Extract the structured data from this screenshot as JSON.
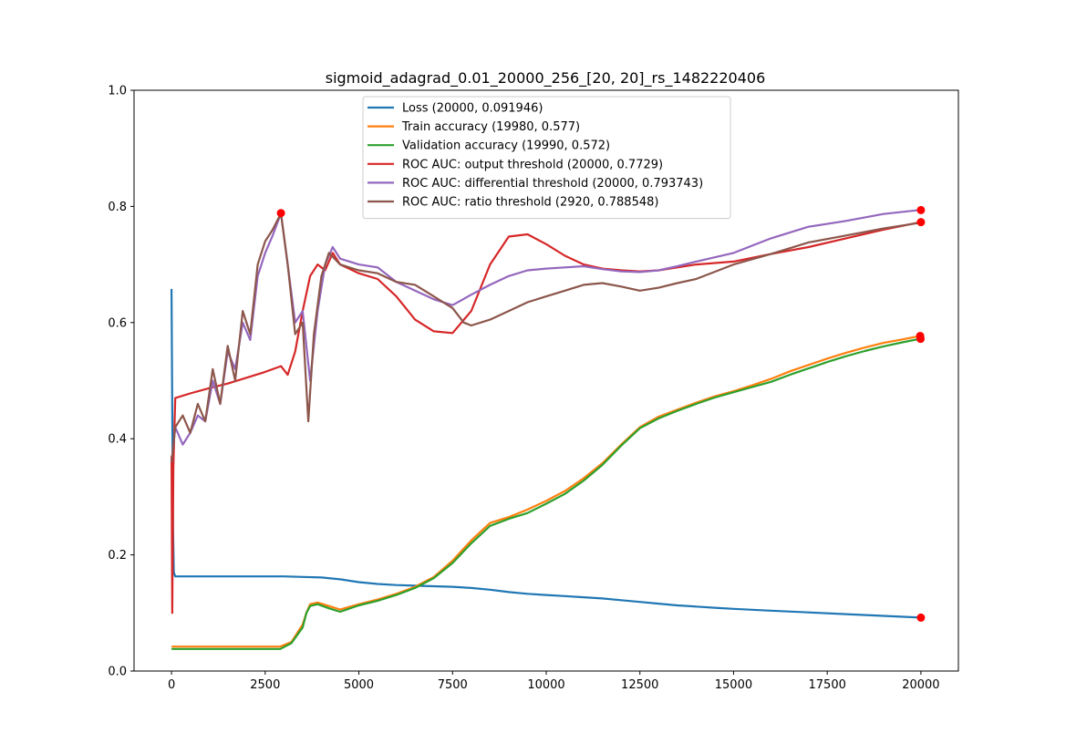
{
  "chart_data": {
    "type": "line",
    "title": "sigmoid_adagrad_0.01_20000_256_[20, 20]_rs_1482220406",
    "xlabel": "",
    "ylabel": "",
    "xlim": [
      -1000,
      21000
    ],
    "ylim": [
      0.0,
      1.0
    ],
    "xticks": [
      0,
      2500,
      5000,
      7500,
      10000,
      12500,
      15000,
      17500,
      20000
    ],
    "yticks": [
      0.0,
      0.2,
      0.4,
      0.6,
      0.8,
      1.0
    ],
    "xtick_labels": [
      "0",
      "2500",
      "5000",
      "7500",
      "10000",
      "12500",
      "15000",
      "17500",
      "20000"
    ],
    "ytick_labels": [
      "0.0",
      "0.2",
      "0.4",
      "0.6",
      "0.8",
      "1.0"
    ],
    "grid": false,
    "legend_position": "upper-center",
    "series": [
      {
        "name": "Loss (20000, 0.091946)",
        "color": "#1f77b4",
        "points": [
          [
            0,
            0.658
          ],
          [
            20,
            0.45
          ],
          [
            40,
            0.25
          ],
          [
            60,
            0.17
          ],
          [
            100,
            0.163
          ],
          [
            500,
            0.163
          ],
          [
            1000,
            0.163
          ],
          [
            2000,
            0.163
          ],
          [
            3000,
            0.163
          ],
          [
            3500,
            0.162
          ],
          [
            4000,
            0.161
          ],
          [
            4500,
            0.158
          ],
          [
            5000,
            0.153
          ],
          [
            5500,
            0.15
          ],
          [
            6000,
            0.148
          ],
          [
            6500,
            0.147
          ],
          [
            7000,
            0.146
          ],
          [
            7500,
            0.145
          ],
          [
            8000,
            0.143
          ],
          [
            8500,
            0.14
          ],
          [
            9000,
            0.136
          ],
          [
            9500,
            0.133
          ],
          [
            10000,
            0.131
          ],
          [
            10500,
            0.129
          ],
          [
            11000,
            0.127
          ],
          [
            11500,
            0.125
          ],
          [
            12000,
            0.122
          ],
          [
            12500,
            0.119
          ],
          [
            13000,
            0.116
          ],
          [
            13500,
            0.113
          ],
          [
            14000,
            0.111
          ],
          [
            14500,
            0.109
          ],
          [
            15000,
            0.107
          ],
          [
            16000,
            0.104
          ],
          [
            17000,
            0.101
          ],
          [
            18000,
            0.098
          ],
          [
            19000,
            0.095
          ],
          [
            20000,
            0.092
          ]
        ],
        "final_marker": [
          20000,
          0.091946
        ]
      },
      {
        "name": "Train accuracy (19980, 0.577)",
        "color": "#ff7f0e",
        "points": [
          [
            0,
            0.042
          ],
          [
            500,
            0.042
          ],
          [
            1000,
            0.042
          ],
          [
            2000,
            0.042
          ],
          [
            2900,
            0.042
          ],
          [
            3200,
            0.05
          ],
          [
            3500,
            0.08
          ],
          [
            3600,
            0.1
          ],
          [
            3700,
            0.115
          ],
          [
            3900,
            0.118
          ],
          [
            4200,
            0.112
          ],
          [
            4500,
            0.106
          ],
          [
            5000,
            0.115
          ],
          [
            5500,
            0.123
          ],
          [
            6000,
            0.133
          ],
          [
            6500,
            0.145
          ],
          [
            7000,
            0.162
          ],
          [
            7500,
            0.19
          ],
          [
            8000,
            0.225
          ],
          [
            8500,
            0.255
          ],
          [
            9000,
            0.265
          ],
          [
            9500,
            0.278
          ],
          [
            10000,
            0.293
          ],
          [
            10500,
            0.31
          ],
          [
            11000,
            0.332
          ],
          [
            11500,
            0.358
          ],
          [
            12000,
            0.39
          ],
          [
            12500,
            0.42
          ],
          [
            13000,
            0.438
          ],
          [
            13500,
            0.45
          ],
          [
            14000,
            0.462
          ],
          [
            14500,
            0.473
          ],
          [
            15000,
            0.482
          ],
          [
            15500,
            0.492
          ],
          [
            16000,
            0.503
          ],
          [
            16500,
            0.516
          ],
          [
            17000,
            0.527
          ],
          [
            17500,
            0.538
          ],
          [
            18000,
            0.548
          ],
          [
            18500,
            0.557
          ],
          [
            19000,
            0.565
          ],
          [
            19500,
            0.571
          ],
          [
            19980,
            0.577
          ]
        ],
        "final_marker": [
          19980,
          0.577
        ]
      },
      {
        "name": "Validation accuracy (19990, 0.572)",
        "color": "#2ca02c",
        "points": [
          [
            0,
            0.038
          ],
          [
            500,
            0.038
          ],
          [
            1000,
            0.038
          ],
          [
            2000,
            0.038
          ],
          [
            2900,
            0.038
          ],
          [
            3200,
            0.048
          ],
          [
            3500,
            0.075
          ],
          [
            3600,
            0.1
          ],
          [
            3700,
            0.112
          ],
          [
            3900,
            0.115
          ],
          [
            4200,
            0.108
          ],
          [
            4500,
            0.102
          ],
          [
            5000,
            0.113
          ],
          [
            5500,
            0.121
          ],
          [
            6000,
            0.131
          ],
          [
            6500,
            0.143
          ],
          [
            7000,
            0.16
          ],
          [
            7500,
            0.186
          ],
          [
            8000,
            0.22
          ],
          [
            8500,
            0.25
          ],
          [
            9000,
            0.262
          ],
          [
            9500,
            0.272
          ],
          [
            10000,
            0.288
          ],
          [
            10500,
            0.305
          ],
          [
            11000,
            0.328
          ],
          [
            11500,
            0.355
          ],
          [
            12000,
            0.388
          ],
          [
            12500,
            0.418
          ],
          [
            13000,
            0.435
          ],
          [
            13500,
            0.448
          ],
          [
            14000,
            0.46
          ],
          [
            14500,
            0.471
          ],
          [
            15000,
            0.48
          ],
          [
            15500,
            0.489
          ],
          [
            16000,
            0.498
          ],
          [
            16500,
            0.51
          ],
          [
            17000,
            0.521
          ],
          [
            17500,
            0.532
          ],
          [
            18000,
            0.542
          ],
          [
            18500,
            0.551
          ],
          [
            19000,
            0.559
          ],
          [
            19500,
            0.566
          ],
          [
            19990,
            0.572
          ]
        ],
        "final_marker": [
          19990,
          0.572
        ]
      },
      {
        "name": "ROC AUC: output threshold (20000, 0.7729)",
        "color": "#d62728",
        "points": [
          [
            0,
            0.37
          ],
          [
            20,
            0.1
          ],
          [
            50,
            0.35
          ],
          [
            100,
            0.47
          ],
          [
            500,
            0.478
          ],
          [
            1000,
            0.487
          ],
          [
            1500,
            0.495
          ],
          [
            2000,
            0.505
          ],
          [
            2500,
            0.515
          ],
          [
            2920,
            0.525
          ],
          [
            3100,
            0.51
          ],
          [
            3300,
            0.55
          ],
          [
            3500,
            0.62
          ],
          [
            3700,
            0.68
          ],
          [
            3900,
            0.7
          ],
          [
            4100,
            0.69
          ],
          [
            4300,
            0.72
          ],
          [
            4500,
            0.7
          ],
          [
            5000,
            0.685
          ],
          [
            5500,
            0.675
          ],
          [
            6000,
            0.645
          ],
          [
            6500,
            0.605
          ],
          [
            7000,
            0.585
          ],
          [
            7500,
            0.582
          ],
          [
            8000,
            0.62
          ],
          [
            8500,
            0.7
          ],
          [
            9000,
            0.748
          ],
          [
            9500,
            0.752
          ],
          [
            10000,
            0.735
          ],
          [
            10500,
            0.715
          ],
          [
            11000,
            0.7
          ],
          [
            11500,
            0.693
          ],
          [
            12000,
            0.69
          ],
          [
            12500,
            0.688
          ],
          [
            13000,
            0.69
          ],
          [
            13500,
            0.695
          ],
          [
            14000,
            0.7
          ],
          [
            15000,
            0.705
          ],
          [
            16000,
            0.718
          ],
          [
            17000,
            0.73
          ],
          [
            18000,
            0.745
          ],
          [
            19000,
            0.76
          ],
          [
            20000,
            0.773
          ]
        ],
        "final_marker": [
          20000,
          0.7729
        ]
      },
      {
        "name": "ROC AUC: differential threshold (20000, 0.793743)",
        "color": "#9467bd",
        "points": [
          [
            0,
            0.36
          ],
          [
            100,
            0.42
          ],
          [
            300,
            0.39
          ],
          [
            500,
            0.41
          ],
          [
            700,
            0.44
          ],
          [
            900,
            0.43
          ],
          [
            1100,
            0.5
          ],
          [
            1300,
            0.46
          ],
          [
            1500,
            0.55
          ],
          [
            1700,
            0.52
          ],
          [
            1900,
            0.6
          ],
          [
            2100,
            0.57
          ],
          [
            2300,
            0.68
          ],
          [
            2500,
            0.72
          ],
          [
            2700,
            0.75
          ],
          [
            2920,
            0.788
          ],
          [
            3100,
            0.7
          ],
          [
            3300,
            0.6
          ],
          [
            3500,
            0.62
          ],
          [
            3700,
            0.5
          ],
          [
            3900,
            0.62
          ],
          [
            4100,
            0.7
          ],
          [
            4300,
            0.73
          ],
          [
            4500,
            0.71
          ],
          [
            5000,
            0.7
          ],
          [
            5500,
            0.695
          ],
          [
            6000,
            0.67
          ],
          [
            6500,
            0.655
          ],
          [
            7000,
            0.64
          ],
          [
            7500,
            0.63
          ],
          [
            8000,
            0.648
          ],
          [
            8500,
            0.665
          ],
          [
            9000,
            0.68
          ],
          [
            9500,
            0.69
          ],
          [
            10000,
            0.693
          ],
          [
            10500,
            0.695
          ],
          [
            11000,
            0.697
          ],
          [
            11500,
            0.692
          ],
          [
            12000,
            0.688
          ],
          [
            12500,
            0.687
          ],
          [
            13000,
            0.69
          ],
          [
            13500,
            0.697
          ],
          [
            14000,
            0.705
          ],
          [
            15000,
            0.72
          ],
          [
            16000,
            0.745
          ],
          [
            17000,
            0.765
          ],
          [
            18000,
            0.775
          ],
          [
            19000,
            0.787
          ],
          [
            20000,
            0.794
          ]
        ],
        "final_marker": [
          20000,
          0.793743
        ]
      },
      {
        "name": "ROC AUC: ratio threshold (2920, 0.788548)",
        "color": "#8c564b",
        "points": [
          [
            0,
            0.36
          ],
          [
            100,
            0.42
          ],
          [
            300,
            0.44
          ],
          [
            500,
            0.41
          ],
          [
            700,
            0.46
          ],
          [
            900,
            0.43
          ],
          [
            1100,
            0.52
          ],
          [
            1300,
            0.46
          ],
          [
            1500,
            0.56
          ],
          [
            1700,
            0.5
          ],
          [
            1900,
            0.62
          ],
          [
            2100,
            0.58
          ],
          [
            2300,
            0.7
          ],
          [
            2500,
            0.74
          ],
          [
            2700,
            0.76
          ],
          [
            2920,
            0.788
          ],
          [
            3100,
            0.7
          ],
          [
            3300,
            0.58
          ],
          [
            3500,
            0.6
          ],
          [
            3650,
            0.43
          ],
          [
            3800,
            0.58
          ],
          [
            4000,
            0.68
          ],
          [
            4200,
            0.72
          ],
          [
            4500,
            0.7
          ],
          [
            5000,
            0.69
          ],
          [
            5500,
            0.685
          ],
          [
            6000,
            0.67
          ],
          [
            6500,
            0.665
          ],
          [
            7000,
            0.645
          ],
          [
            7500,
            0.625
          ],
          [
            7800,
            0.6
          ],
          [
            8000,
            0.595
          ],
          [
            8500,
            0.605
          ],
          [
            9000,
            0.62
          ],
          [
            9500,
            0.635
          ],
          [
            10000,
            0.645
          ],
          [
            10500,
            0.655
          ],
          [
            11000,
            0.665
          ],
          [
            11500,
            0.668
          ],
          [
            12000,
            0.662
          ],
          [
            12500,
            0.655
          ],
          [
            13000,
            0.66
          ],
          [
            13500,
            0.668
          ],
          [
            14000,
            0.675
          ],
          [
            15000,
            0.7
          ],
          [
            16000,
            0.718
          ],
          [
            17000,
            0.738
          ],
          [
            18000,
            0.75
          ],
          [
            19000,
            0.762
          ],
          [
            20000,
            0.772
          ]
        ],
        "final_marker": [
          2920,
          0.788548
        ]
      }
    ]
  }
}
